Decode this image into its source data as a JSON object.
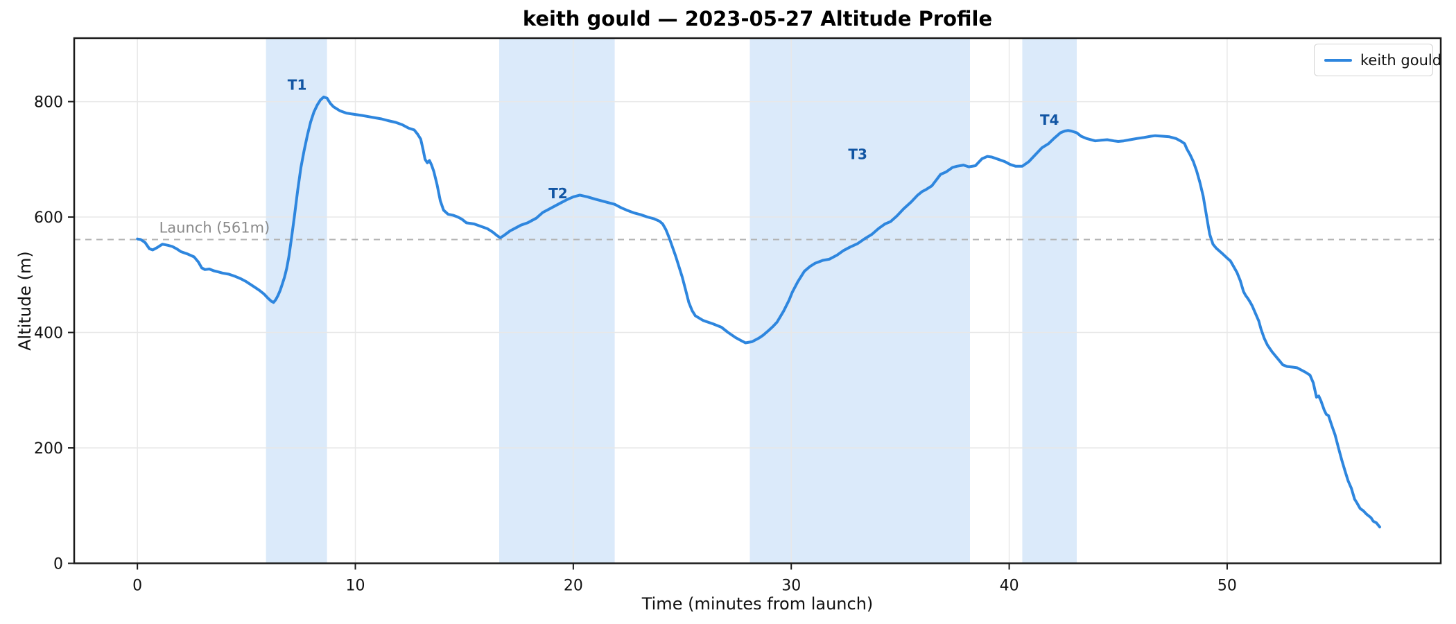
{
  "chart_data": {
    "type": "line",
    "title": "keith gould — 2023-05-27 Altitude Profile",
    "xlabel": "Time (minutes from launch)",
    "ylabel": "Altitude (m)",
    "xlim": [
      -2.9,
      59.8
    ],
    "ylim": [
      0,
      910
    ],
    "xticks": [
      0,
      10,
      20,
      30,
      40,
      50
    ],
    "yticks": [
      0,
      200,
      400,
      600,
      800
    ],
    "grid": true,
    "legend": {
      "position": "top-right",
      "entries": [
        {
          "label": "keith gould",
          "color": "#2e86de"
        }
      ]
    },
    "launch_line": {
      "altitude": 561,
      "label": "Launch (561m)",
      "label_t": 1.0,
      "line_color": "#b3b3b3",
      "label_color": "#8a8a8a"
    },
    "bands": [
      {
        "label": "T1",
        "t_start": 5.9,
        "t_end": 8.7,
        "label_t": 7.33,
        "label_alt": 829
      },
      {
        "label": "T2",
        "t_start": 16.6,
        "t_end": 21.9,
        "label_t": 19.3,
        "label_alt": 641
      },
      {
        "label": "T3",
        "t_start": 28.1,
        "t_end": 38.2,
        "label_t": 33.05,
        "label_alt": 709
      },
      {
        "label": "T4",
        "t_start": 40.6,
        "t_end": 43.1,
        "label_t": 41.85,
        "label_alt": 768
      }
    ],
    "colors": {
      "line": "#2e86de",
      "band_fill": "#dbeafa",
      "band_label": "#1155a3",
      "grid": "#e8e8e8",
      "frame": "#1a1a1a",
      "tick_text": "#111111"
    },
    "series": [
      {
        "name": "keith gould",
        "color": "#2e86de",
        "points": [
          [
            0,
            562
          ],
          [
            0.15,
            561
          ],
          [
            0.35,
            556
          ],
          [
            0.55,
            545
          ],
          [
            0.7,
            543
          ],
          [
            0.9,
            547
          ],
          [
            1.15,
            553
          ],
          [
            1.4,
            551
          ],
          [
            1.6,
            549
          ],
          [
            1.8,
            545
          ],
          [
            2,
            540
          ],
          [
            2.3,
            536
          ],
          [
            2.6,
            531
          ],
          [
            2.8,
            522
          ],
          [
            2.95,
            512
          ],
          [
            3.1,
            509
          ],
          [
            3.3,
            510
          ],
          [
            3.5,
            507
          ],
          [
            3.7,
            505
          ],
          [
            3.9,
            503
          ],
          [
            4.2,
            501
          ],
          [
            4.5,
            497
          ],
          [
            4.75,
            493
          ],
          [
            5,
            488
          ],
          [
            5.2,
            483
          ],
          [
            5.4,
            478
          ],
          [
            5.6,
            473
          ],
          [
            5.8,
            467
          ],
          [
            6,
            459
          ],
          [
            6.15,
            454
          ],
          [
            6.25,
            452
          ],
          [
            6.35,
            457
          ],
          [
            6.45,
            464
          ],
          [
            6.55,
            473
          ],
          [
            6.65,
            484
          ],
          [
            6.75,
            496
          ],
          [
            6.85,
            511
          ],
          [
            6.95,
            531
          ],
          [
            7.05,
            558
          ],
          [
            7.2,
            600
          ],
          [
            7.35,
            645
          ],
          [
            7.5,
            685
          ],
          [
            7.65,
            715
          ],
          [
            7.8,
            742
          ],
          [
            7.95,
            765
          ],
          [
            8.1,
            782
          ],
          [
            8.25,
            794
          ],
          [
            8.4,
            803
          ],
          [
            8.55,
            808
          ],
          [
            8.7,
            806
          ],
          [
            8.85,
            797
          ],
          [
            9,
            791
          ],
          [
            9.3,
            784
          ],
          [
            9.6,
            780
          ],
          [
            9.95,
            778
          ],
          [
            10.3,
            776
          ],
          [
            10.6,
            774
          ],
          [
            10.9,
            772
          ],
          [
            11.2,
            770
          ],
          [
            11.5,
            767
          ],
          [
            11.85,
            764
          ],
          [
            12.15,
            760
          ],
          [
            12.45,
            754
          ],
          [
            12.7,
            751
          ],
          [
            12.85,
            744
          ],
          [
            13,
            735
          ],
          [
            13.1,
            718
          ],
          [
            13.2,
            700
          ],
          [
            13.3,
            694
          ],
          [
            13.4,
            698
          ],
          [
            13.5,
            690
          ],
          [
            13.6,
            679
          ],
          [
            13.75,
            656
          ],
          [
            13.9,
            628
          ],
          [
            14.05,
            612
          ],
          [
            14.25,
            605
          ],
          [
            14.5,
            603
          ],
          [
            14.7,
            600
          ],
          [
            14.9,
            596
          ],
          [
            15.1,
            590
          ],
          [
            15.45,
            588
          ],
          [
            15.75,
            584
          ],
          [
            16.05,
            580
          ],
          [
            16.3,
            574
          ],
          [
            16.5,
            568
          ],
          [
            16.65,
            564
          ],
          [
            16.85,
            569
          ],
          [
            17.1,
            576
          ],
          [
            17.3,
            580
          ],
          [
            17.6,
            586
          ],
          [
            17.9,
            590
          ],
          [
            18.3,
            598
          ],
          [
            18.6,
            608
          ],
          [
            18.8,
            612
          ],
          [
            19.15,
            619
          ],
          [
            19.45,
            625
          ],
          [
            19.7,
            630
          ],
          [
            20,
            635
          ],
          [
            20.3,
            638
          ],
          [
            20.65,
            635
          ],
          [
            21,
            631
          ],
          [
            21.3,
            628
          ],
          [
            21.7,
            624
          ],
          [
            21.9,
            622
          ],
          [
            22.2,
            616
          ],
          [
            22.45,
            612
          ],
          [
            22.8,
            607
          ],
          [
            23.1,
            604
          ],
          [
            23.4,
            600
          ],
          [
            23.7,
            597
          ],
          [
            23.95,
            593
          ],
          [
            24.1,
            588
          ],
          [
            24.25,
            578
          ],
          [
            24.4,
            564
          ],
          [
            24.55,
            548
          ],
          [
            24.7,
            532
          ],
          [
            24.85,
            514
          ],
          [
            25,
            496
          ],
          [
            25.15,
            474
          ],
          [
            25.3,
            452
          ],
          [
            25.45,
            438
          ],
          [
            25.6,
            429
          ],
          [
            25.95,
            421
          ],
          [
            26.4,
            415
          ],
          [
            26.8,
            409
          ],
          [
            27.1,
            400
          ],
          [
            27.45,
            391
          ],
          [
            27.7,
            386
          ],
          [
            27.9,
            382
          ],
          [
            28.2,
            384
          ],
          [
            28.5,
            390
          ],
          [
            28.7,
            395
          ],
          [
            28.95,
            403
          ],
          [
            29.15,
            410
          ],
          [
            29.35,
            418
          ],
          [
            29.65,
            437
          ],
          [
            29.9,
            456
          ],
          [
            30.05,
            470
          ],
          [
            30.3,
            488
          ],
          [
            30.6,
            506
          ],
          [
            30.85,
            514
          ],
          [
            31.1,
            520
          ],
          [
            31.45,
            525
          ],
          [
            31.75,
            527
          ],
          [
            32.1,
            534
          ],
          [
            32.4,
            542
          ],
          [
            32.7,
            548
          ],
          [
            33.05,
            554
          ],
          [
            33.35,
            562
          ],
          [
            33.7,
            570
          ],
          [
            34,
            580
          ],
          [
            34.3,
            588
          ],
          [
            34.55,
            592
          ],
          [
            34.85,
            602
          ],
          [
            35.15,
            614
          ],
          [
            35.5,
            626
          ],
          [
            35.8,
            638
          ],
          [
            36,
            644
          ],
          [
            36.2,
            648
          ],
          [
            36.45,
            654
          ],
          [
            36.65,
            664
          ],
          [
            36.85,
            674
          ],
          [
            37.1,
            678
          ],
          [
            37.4,
            686
          ],
          [
            37.6,
            688
          ],
          [
            37.9,
            690
          ],
          [
            38.15,
            687
          ],
          [
            38.45,
            689
          ],
          [
            38.6,
            695
          ],
          [
            38.75,
            701
          ],
          [
            39,
            705
          ],
          [
            39.2,
            704
          ],
          [
            39.5,
            700
          ],
          [
            39.8,
            696
          ],
          [
            40.05,
            691
          ],
          [
            40.3,
            688
          ],
          [
            40.6,
            688
          ],
          [
            40.9,
            696
          ],
          [
            41.2,
            708
          ],
          [
            41.5,
            720
          ],
          [
            41.8,
            727
          ],
          [
            42.05,
            736
          ],
          [
            42.35,
            746
          ],
          [
            42.55,
            749
          ],
          [
            42.7,
            750
          ],
          [
            42.85,
            749
          ],
          [
            43.1,
            746
          ],
          [
            43.3,
            740
          ],
          [
            43.55,
            736
          ],
          [
            43.95,
            732
          ],
          [
            44.2,
            733
          ],
          [
            44.5,
            734
          ],
          [
            44.8,
            732
          ],
          [
            45,
            731
          ],
          [
            45.25,
            732
          ],
          [
            45.55,
            734
          ],
          [
            45.85,
            736
          ],
          [
            46.2,
            738
          ],
          [
            46.5,
            740
          ],
          [
            46.7,
            741
          ],
          [
            47.05,
            740
          ],
          [
            47.35,
            739
          ],
          [
            47.65,
            736
          ],
          [
            47.9,
            731
          ],
          [
            48.05,
            727
          ],
          [
            48.15,
            718
          ],
          [
            48.3,
            708
          ],
          [
            48.45,
            696
          ],
          [
            48.6,
            680
          ],
          [
            48.75,
            660
          ],
          [
            48.9,
            636
          ],
          [
            49,
            614
          ],
          [
            49.1,
            592
          ],
          [
            49.2,
            570
          ],
          [
            49.35,
            553
          ],
          [
            49.5,
            546
          ],
          [
            49.8,
            536
          ],
          [
            50,
            529
          ],
          [
            50.15,
            524
          ],
          [
            50.3,
            514
          ],
          [
            50.45,
            504
          ],
          [
            50.6,
            490
          ],
          [
            50.75,
            471
          ],
          [
            50.85,
            464
          ],
          [
            50.95,
            459
          ],
          [
            51.05,
            453
          ],
          [
            51.15,
            446
          ],
          [
            51.3,
            433
          ],
          [
            51.45,
            420
          ],
          [
            51.55,
            406
          ],
          [
            51.7,
            390
          ],
          [
            51.85,
            378
          ],
          [
            52.05,
            367
          ],
          [
            52.2,
            360
          ],
          [
            52.4,
            351
          ],
          [
            52.55,
            344
          ],
          [
            52.75,
            341
          ],
          [
            53,
            340
          ],
          [
            53.2,
            339
          ],
          [
            53.4,
            335
          ],
          [
            53.6,
            331
          ],
          [
            53.8,
            326
          ],
          [
            53.95,
            313
          ],
          [
            54.1,
            288
          ],
          [
            54.2,
            290
          ],
          [
            54.3,
            282
          ],
          [
            54.45,
            266
          ],
          [
            54.55,
            258
          ],
          [
            54.65,
            256
          ],
          [
            54.8,
            239
          ],
          [
            54.95,
            223
          ],
          [
            55.1,
            201
          ],
          [
            55.25,
            180
          ],
          [
            55.4,
            161
          ],
          [
            55.55,
            143
          ],
          [
            55.7,
            130
          ],
          [
            55.85,
            111
          ],
          [
            55.95,
            105
          ],
          [
            56.1,
            95
          ],
          [
            56.25,
            91
          ],
          [
            56.4,
            85
          ],
          [
            56.6,
            79
          ],
          [
            56.7,
            73
          ],
          [
            56.85,
            70
          ],
          [
            57,
            63
          ]
        ]
      }
    ]
  }
}
